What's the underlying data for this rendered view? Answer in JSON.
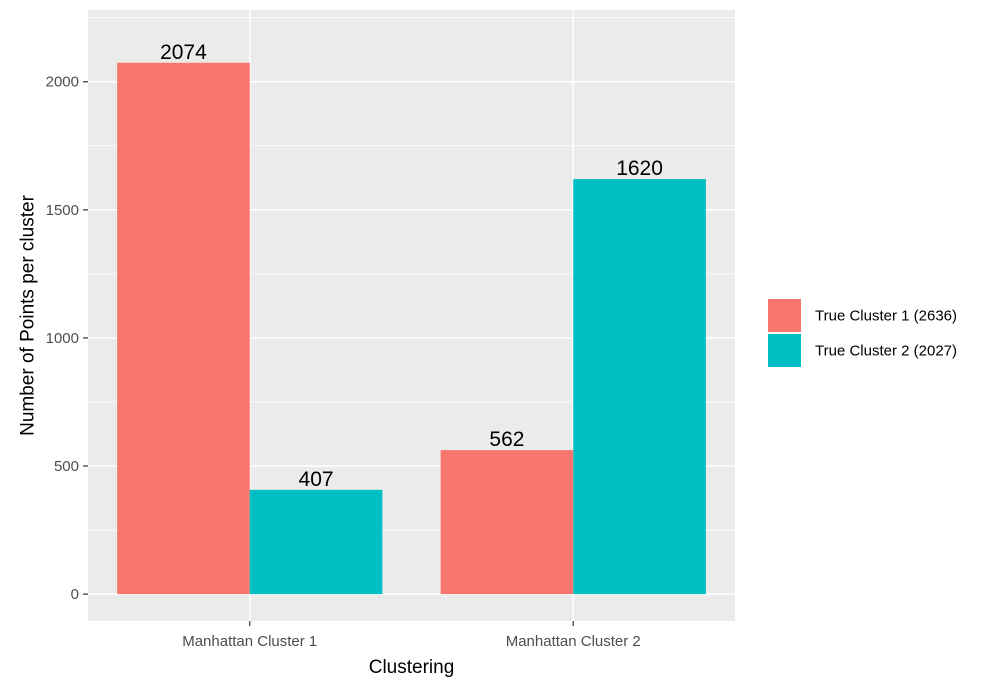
{
  "chart_data": {
    "type": "bar",
    "categories": [
      "Manhattan Cluster 1",
      "Manhattan Cluster 2"
    ],
    "series": [
      {
        "name": "True Cluster 1 (2636)",
        "values": [
          2074,
          562
        ],
        "color": "#F8766D"
      },
      {
        "name": "True Cluster 2 (2027)",
        "values": [
          407,
          1620
        ],
        "color": "#00BFC4"
      }
    ],
    "title": "",
    "xlabel": "Clustering",
    "ylabel": "Number of Points per cluster",
    "ylim": [
      -105,
      2280
    ],
    "yticks": [
      0,
      500,
      1000,
      1500,
      2000
    ],
    "grid": true,
    "legend_position": "right",
    "panel_color": "#EBEBEB",
    "grid_color": "#FFFFFF"
  }
}
